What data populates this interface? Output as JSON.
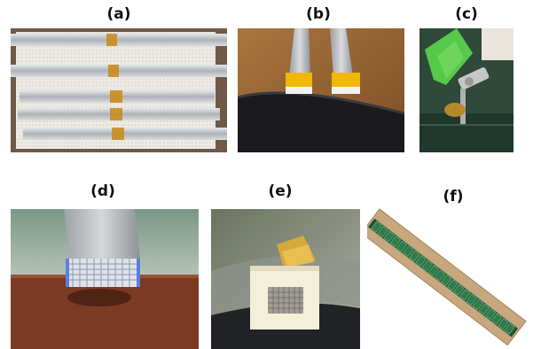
{
  "figure": {
    "panels": [
      {
        "id": "a",
        "label": "(a)"
      },
      {
        "id": "b",
        "label": "(b)"
      },
      {
        "id": "c",
        "label": "(c)"
      },
      {
        "id": "d",
        "label": "(d)"
      },
      {
        "id": "e",
        "label": "(e)"
      },
      {
        "id": "f",
        "label": "(f)"
      }
    ]
  },
  "colors": {
    "foil": "#c9ccd0",
    "tape_yellow": "#e8b400",
    "kapton_amber": "#c98a16",
    "green_fixture": "#57c94a",
    "ceramic_block": "#f3efd8",
    "bench_brown": "#7b3a24",
    "grid_blue": "#5b7fe0",
    "wood": "#c7a77e",
    "cell_green": "#2f7b4a"
  }
}
